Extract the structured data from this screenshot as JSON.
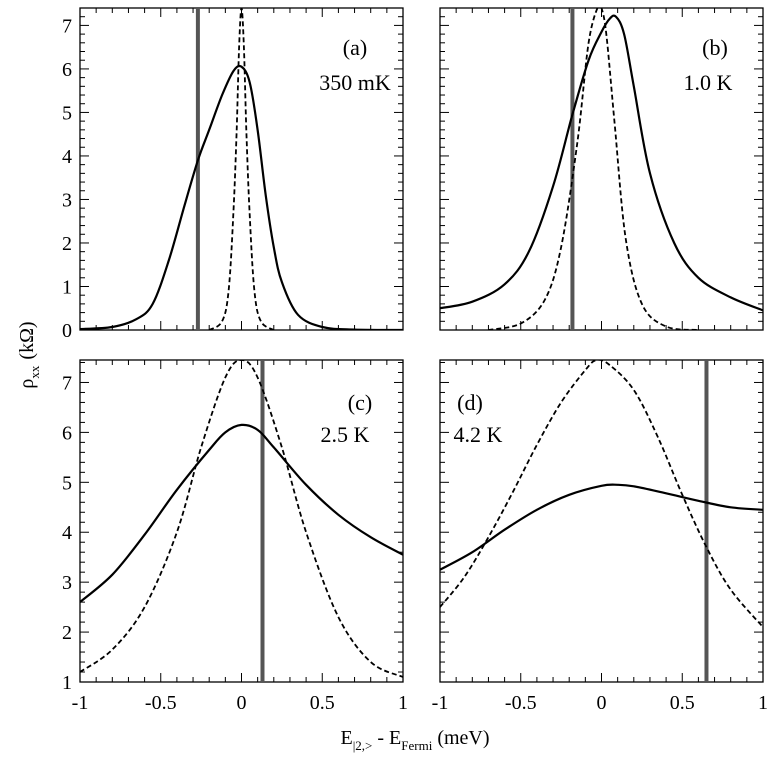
{
  "figure": {
    "ylabel": "ρ",
    "ylabel_sub": "xx",
    "ylabel_unit": "(kΩ)",
    "xlabel": "E",
    "xlabel_sub": "|2,>",
    "xlabel_mid": " - E",
    "xlabel_sub2": "Fermi",
    "xlabel_unit": " (meV)"
  },
  "chart_data": [
    {
      "type": "line",
      "panel": "a",
      "label": "(a)",
      "temperature": "350 mK",
      "xlim": [
        -1,
        1
      ],
      "ylim": [
        0,
        7.4
      ],
      "yticks": [
        0,
        1,
        2,
        3,
        4,
        5,
        6,
        7
      ],
      "ytick_labels": [
        "0",
        "1",
        "2",
        "3",
        "4",
        "5",
        "6",
        "7"
      ],
      "vline_x": -0.27,
      "series": [
        {
          "style": "solid",
          "x": [
            -1.0,
            -0.8,
            -0.65,
            -0.55,
            -0.45,
            -0.35,
            -0.27,
            -0.2,
            -0.12,
            -0.05,
            0.0,
            0.05,
            0.1,
            0.15,
            0.2,
            0.25,
            0.35,
            0.5,
            0.7,
            1.0
          ],
          "y": [
            0.02,
            0.07,
            0.25,
            0.6,
            1.6,
            2.9,
            3.9,
            4.6,
            5.4,
            5.95,
            6.05,
            5.7,
            4.6,
            3.1,
            1.9,
            1.1,
            0.35,
            0.07,
            0.01,
            0.0
          ]
        },
        {
          "style": "dashed",
          "x": [
            -0.2,
            -0.12,
            -0.08,
            -0.05,
            -0.03,
            -0.015,
            0.0,
            0.015,
            0.03,
            0.05,
            0.08,
            0.12,
            0.2
          ],
          "y": [
            0.0,
            0.2,
            0.9,
            2.7,
            4.6,
            6.5,
            7.4,
            6.5,
            4.6,
            2.7,
            0.9,
            0.2,
            0.0
          ]
        }
      ]
    },
    {
      "type": "line",
      "panel": "b",
      "label": "(b)",
      "temperature": "1.0 K",
      "xlim": [
        -1,
        1
      ],
      "ylim": [
        0,
        7.4
      ],
      "yticks": [
        0,
        1,
        2,
        3,
        4,
        5,
        6,
        7
      ],
      "ytick_labels": [],
      "vline_x": -0.18,
      "series": [
        {
          "style": "solid",
          "x": [
            -1.0,
            -0.8,
            -0.6,
            -0.45,
            -0.3,
            -0.18,
            -0.08,
            0.0,
            0.05,
            0.09,
            0.14,
            0.2,
            0.3,
            0.45,
            0.6,
            0.8,
            1.0
          ],
          "y": [
            0.5,
            0.65,
            1.05,
            1.8,
            3.3,
            4.95,
            6.2,
            6.85,
            7.15,
            7.2,
            6.8,
            5.6,
            3.6,
            2.0,
            1.2,
            0.75,
            0.45
          ]
        },
        {
          "style": "dashed",
          "x": [
            -0.7,
            -0.5,
            -0.35,
            -0.25,
            -0.15,
            -0.08,
            -0.02,
            0.0,
            0.03,
            0.08,
            0.15,
            0.25,
            0.4,
            0.6
          ],
          "y": [
            0.0,
            0.15,
            0.7,
            1.9,
            4.3,
            6.6,
            7.45,
            7.4,
            6.8,
            4.8,
            2.1,
            0.6,
            0.08,
            0.0
          ]
        }
      ]
    },
    {
      "type": "line",
      "panel": "c",
      "label": "(c)",
      "temperature": "2.5 K",
      "xlim": [
        -1,
        1
      ],
      "ylim": [
        1,
        7.45
      ],
      "yticks": [
        1,
        2,
        3,
        4,
        5,
        6,
        7
      ],
      "ytick_labels": [
        "1",
        "2",
        "3",
        "4",
        "5",
        "6",
        "7"
      ],
      "vline_x": 0.13,
      "series": [
        {
          "style": "solid",
          "x": [
            -1.0,
            -0.8,
            -0.6,
            -0.4,
            -0.2,
            -0.1,
            0.0,
            0.1,
            0.2,
            0.4,
            0.6,
            0.8,
            1.0
          ],
          "y": [
            2.6,
            3.15,
            3.95,
            4.85,
            5.65,
            6.0,
            6.15,
            6.05,
            5.7,
            4.95,
            4.35,
            3.9,
            3.55
          ]
        },
        {
          "style": "dashed",
          "x": [
            -1.0,
            -0.8,
            -0.6,
            -0.4,
            -0.25,
            -0.1,
            0.0,
            0.1,
            0.25,
            0.4,
            0.6,
            0.8,
            1.0
          ],
          "y": [
            1.2,
            1.65,
            2.5,
            4.0,
            5.7,
            7.1,
            7.45,
            7.1,
            5.7,
            4.0,
            2.3,
            1.4,
            1.1
          ]
        }
      ]
    },
    {
      "type": "line",
      "panel": "d",
      "label": "(d)",
      "temperature": "4.2 K",
      "xlim": [
        -1,
        1
      ],
      "ylim": [
        1,
        7.45
      ],
      "yticks": [
        1,
        2,
        3,
        4,
        5,
        6,
        7
      ],
      "ytick_labels": [],
      "vline_x": 0.65,
      "series": [
        {
          "style": "solid",
          "x": [
            -1.0,
            -0.8,
            -0.6,
            -0.4,
            -0.2,
            0.0,
            0.1,
            0.2,
            0.4,
            0.6,
            0.8,
            1.0
          ],
          "y": [
            3.25,
            3.6,
            4.05,
            4.45,
            4.75,
            4.93,
            4.95,
            4.92,
            4.78,
            4.63,
            4.5,
            4.45
          ]
        },
        {
          "style": "dashed",
          "x": [
            -1.0,
            -0.85,
            -0.7,
            -0.55,
            -0.4,
            -0.25,
            -0.1,
            -0.03,
            0.05,
            0.2,
            0.35,
            0.5,
            0.65,
            0.8,
            1.0
          ],
          "y": [
            2.5,
            3.1,
            3.9,
            4.8,
            5.75,
            6.6,
            7.25,
            7.45,
            7.35,
            6.85,
            5.9,
            4.75,
            3.7,
            2.85,
            2.1
          ]
        }
      ]
    }
  ],
  "xticks": [
    -1,
    -0.5,
    0,
    0.5,
    1
  ],
  "xtick_labels": [
    "-1",
    "-0.5",
    "0",
    "0.5",
    "1"
  ]
}
